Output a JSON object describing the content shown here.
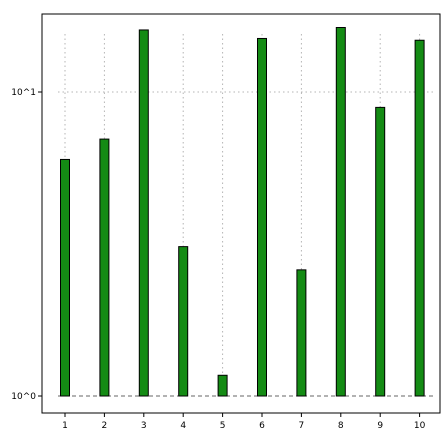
{
  "chart_data": {
    "type": "bar",
    "title": "",
    "xlabel": "",
    "ylabel": "",
    "categories": [
      "1",
      "2",
      "3",
      "4",
      "5",
      "6",
      "7",
      "8",
      "9",
      "10"
    ],
    "values": [
      6.0,
      7.0,
      16.0,
      3.1,
      1.17,
      15.0,
      2.6,
      16.3,
      8.9,
      14.8
    ],
    "y_scale": "log10",
    "ylim": [
      0.82,
      22
    ],
    "y_ticks": [
      {
        "value": 1,
        "label": "10^0"
      },
      {
        "value": 10,
        "label": "10^1"
      }
    ],
    "grid": true,
    "legend": "none",
    "colors": {
      "bar_fill": "#148b14",
      "bar_edge": "#000000",
      "grid": "#b4b4b4",
      "baseline": "#666666"
    }
  }
}
